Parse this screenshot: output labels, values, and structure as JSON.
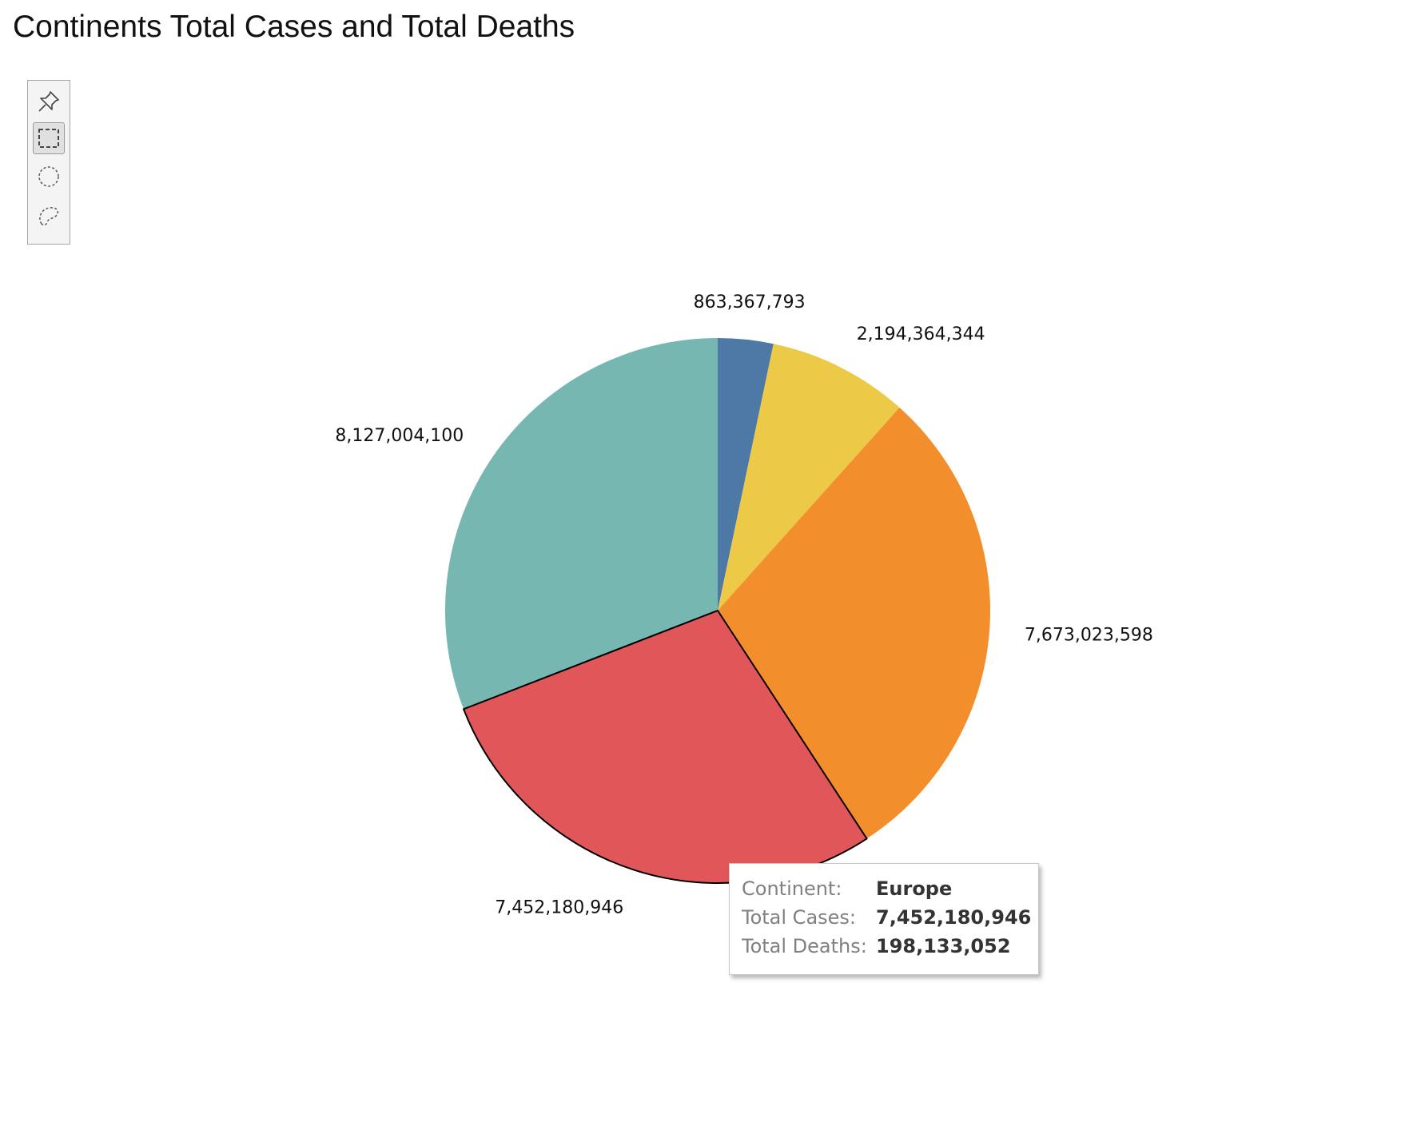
{
  "page": {
    "title": "Continents Total Cases and Total Deaths"
  },
  "toolbar": {
    "tools": [
      {
        "icon": "pin-icon",
        "active": false
      },
      {
        "icon": "rectangle-select-icon",
        "active": true
      },
      {
        "icon": "radial-select-icon",
        "active": false
      },
      {
        "icon": "lasso-select-icon",
        "active": false
      }
    ]
  },
  "chart_data": {
    "type": "pie",
    "title": "Continents Total Cases and Total Deaths",
    "start_angle_deg": 0,
    "direction": "clockwise",
    "slices": [
      {
        "value": 863367793,
        "label": "863,367,793",
        "color": "#4e79a7"
      },
      {
        "value": 2194364344,
        "label": "2,194,364,344",
        "color": "#edc948"
      },
      {
        "value": 7673023598,
        "label": "7,673,023,598",
        "color": "#f28e2b"
      },
      {
        "value": 7452180946,
        "label": "7,452,180,946",
        "color": "#e15759",
        "highlighted": true
      },
      {
        "value": 8127004100,
        "label": "8,127,004,100",
        "color": "#76b7b2"
      }
    ]
  },
  "tooltip": {
    "rows": [
      {
        "key": "Continent:",
        "value": "Europe"
      },
      {
        "key": "Total Cases:",
        "value": "7,452,180,946"
      },
      {
        "key": "Total Deaths:",
        "value": "198,133,052"
      }
    ]
  }
}
